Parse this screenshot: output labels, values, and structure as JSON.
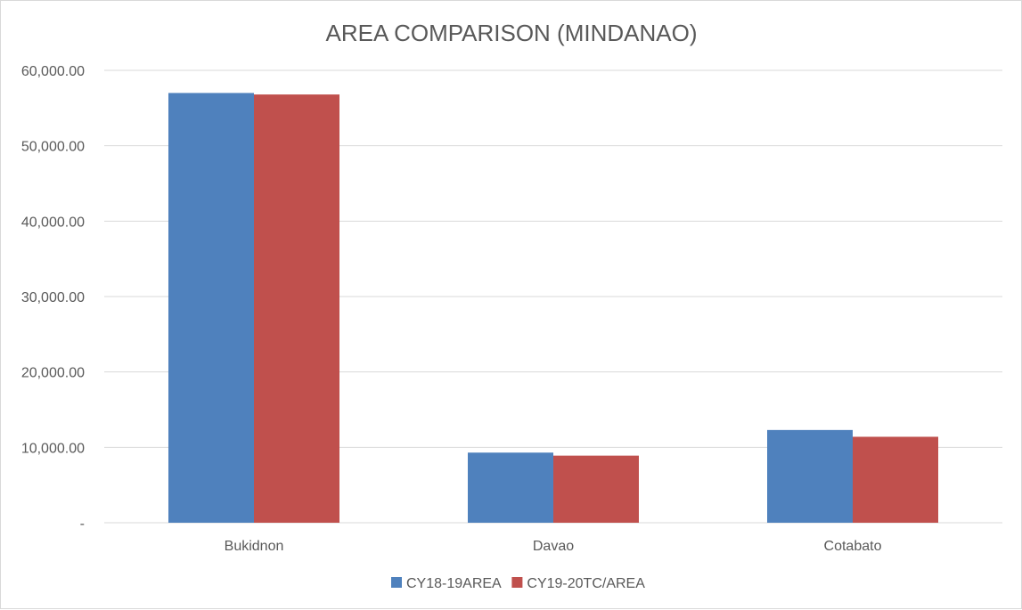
{
  "chart_data": {
    "type": "bar",
    "title": "AREA COMPARISON (MINDANAO)",
    "xlabel": "",
    "ylabel": "",
    "categories": [
      "Bukidnon",
      "Davao",
      "Cotabato"
    ],
    "series": [
      {
        "name": "CY18-19AREA",
        "color": "#4f81bd",
        "values": [
          57000,
          9300,
          12300
        ]
      },
      {
        "name": "CY19-20TC/AREA",
        "color": "#c0504d",
        "values": [
          56800,
          8900,
          11400
        ]
      }
    ],
    "ylim": [
      0,
      60000
    ],
    "yticks": [
      0,
      10000,
      20000,
      30000,
      40000,
      50000,
      60000
    ],
    "ytick_labels": [
      "-",
      "10,000.00",
      "20,000.00",
      "30,000.00",
      "40,000.00",
      "50,000.00",
      "60,000.00"
    ],
    "grid": true,
    "legend_position": "bottom"
  }
}
